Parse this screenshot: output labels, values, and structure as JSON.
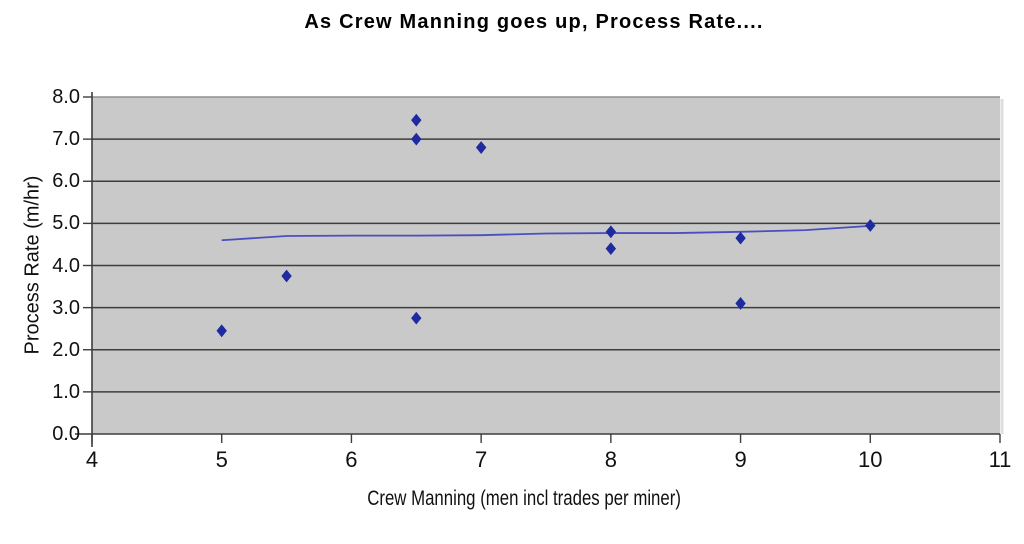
{
  "chart_data": {
    "type": "scatter",
    "title": "As Crew Manning goes up, Process Rate....",
    "xlabel": "Crew Manning (men incl trades per miner)",
    "ylabel": "Process Rate (m/hr)",
    "xlim": [
      4,
      11
    ],
    "ylim": [
      0,
      8
    ],
    "x_ticks": [
      "4",
      "5",
      "6",
      "7",
      "8",
      "9",
      "10",
      "11"
    ],
    "x_tick_values": [
      4,
      5,
      6,
      7,
      8,
      9,
      10,
      11
    ],
    "y_ticks": [
      "0.0",
      "1.0",
      "2.0",
      "3.0",
      "4.0",
      "5.0",
      "6.0",
      "7.0",
      "8.0"
    ],
    "y_tick_values": [
      0,
      1,
      2,
      3,
      4,
      5,
      6,
      7,
      8
    ],
    "grid": "horizontal",
    "legend": "none",
    "plot_bg_color": "#c9c9c9",
    "gridline_color": "#3d3d3d",
    "top_border_color": "#8f8f8f",
    "marker_color": "#1e2aa0",
    "trend_line_color": "#4a4fc0",
    "series": [
      {
        "name": "observations",
        "kind": "scatter",
        "marker": "diamond",
        "points": [
          [
            5.0,
            2.45
          ],
          [
            5.5,
            3.75
          ],
          [
            6.5,
            2.75
          ],
          [
            6.5,
            7.0
          ],
          [
            6.5,
            7.45
          ],
          [
            7.0,
            6.8
          ],
          [
            8.0,
            4.4
          ],
          [
            8.0,
            4.8
          ],
          [
            9.0,
            3.1
          ],
          [
            9.0,
            4.65
          ],
          [
            10.0,
            4.95
          ]
        ]
      },
      {
        "name": "trend",
        "kind": "line",
        "points": [
          [
            5.0,
            4.6
          ],
          [
            5.5,
            4.7
          ],
          [
            6.0,
            4.71
          ],
          [
            6.5,
            4.71
          ],
          [
            7.0,
            4.72
          ],
          [
            7.5,
            4.76
          ],
          [
            8.0,
            4.77
          ],
          [
            8.5,
            4.77
          ],
          [
            9.0,
            4.8
          ],
          [
            9.5,
            4.84
          ],
          [
            10.0,
            4.94
          ]
        ]
      }
    ]
  }
}
